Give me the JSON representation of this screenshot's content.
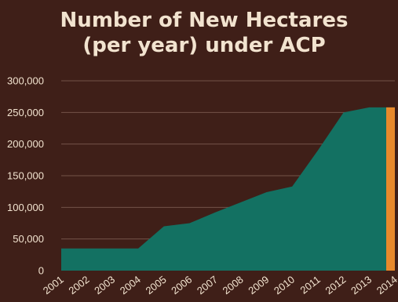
{
  "chart_data": {
    "type": "area",
    "title_lines": [
      "Number of New Hectares",
      "(per year) under ACP"
    ],
    "xlabel": "",
    "ylabel": "",
    "x": [
      "2001",
      "2002",
      "2003",
      "2004",
      "2005",
      "2006",
      "2007",
      "2008",
      "2009",
      "2010",
      "2011",
      "2012",
      "2013",
      "2014"
    ],
    "values": [
      35000,
      35000,
      35000,
      35000,
      70000,
      75000,
      92000,
      108000,
      124000,
      133000,
      190000,
      250000,
      258000,
      258000
    ],
    "highlight": {
      "category": "2014",
      "value": 258000,
      "color": "#e8892b"
    },
    "ylim": [
      0,
      300000
    ],
    "yticks": [
      0,
      50000,
      100000,
      150000,
      200000,
      250000,
      300000
    ],
    "ytick_labels": [
      "0",
      "50,000",
      "100,000",
      "150,000",
      "200,000",
      "250,000",
      "300,000"
    ],
    "grid": true,
    "colors": {
      "background": "#3f1f18",
      "area": "#137162",
      "text": "#f2e3cf",
      "grid": "#8a6a5e"
    }
  }
}
